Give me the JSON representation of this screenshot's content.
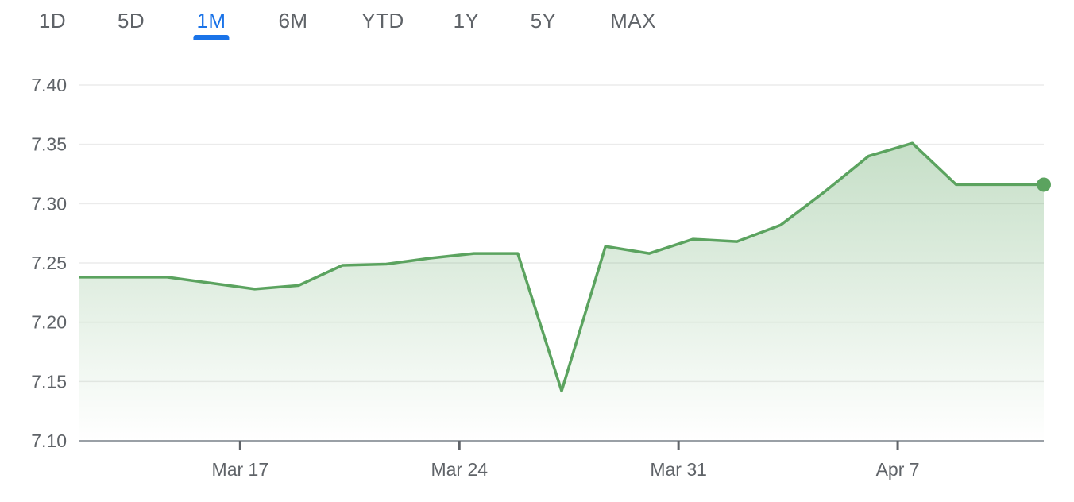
{
  "range_tabs": [
    {
      "label": "1D",
      "active": false
    },
    {
      "label": "5D",
      "active": false
    },
    {
      "label": "1M",
      "active": true
    },
    {
      "label": "6M",
      "active": false
    },
    {
      "label": "YTD",
      "active": false
    },
    {
      "label": "1Y",
      "active": false
    },
    {
      "label": "5Y",
      "active": false
    },
    {
      "label": "MAX",
      "active": false
    }
  ],
  "colors": {
    "accent": "#1a73e8",
    "line": "#5ba35f",
    "grid": "#ebebeb",
    "axis": "#9aa0a6",
    "text": "#5f6368"
  },
  "chart_data": {
    "type": "area",
    "title": "",
    "xlabel": "",
    "ylabel": "",
    "ylim": [
      7.1,
      7.4
    ],
    "yticks": [
      "7.40",
      "7.35",
      "7.30",
      "7.25",
      "7.20",
      "7.15",
      "7.10"
    ],
    "xtick_labels": [
      "Mar 17",
      "Mar 24",
      "Mar 31",
      "Apr 7"
    ],
    "grid": true,
    "series": [
      {
        "x": [
          "Mar 12",
          "Mar 13",
          "Mar 14",
          "Mar 15",
          "Mar 18",
          "Mar 19",
          "Mar 20",
          "Mar 21",
          "Mar 22",
          "Mar 25",
          "Mar 26",
          "Mar 27",
          "Mar 28",
          "Mar 29",
          "Apr 1",
          "Apr 2",
          "Apr 3",
          "Apr 4",
          "Apr 5",
          "Apr 8",
          "Apr 9",
          "Apr 10",
          "Apr 11"
        ],
        "values": [
          7.238,
          7.238,
          7.238,
          7.233,
          7.228,
          7.231,
          7.248,
          7.249,
          7.254,
          7.258,
          7.258,
          7.142,
          7.264,
          7.258,
          7.27,
          7.268,
          7.282,
          7.31,
          7.34,
          7.351,
          7.316,
          7.316,
          7.316
        ]
      }
    ]
  }
}
